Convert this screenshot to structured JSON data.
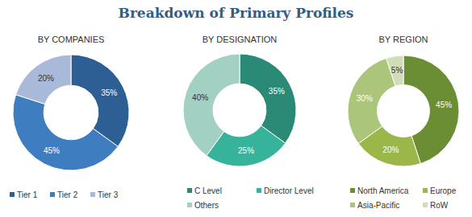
{
  "title": "Breakdown of Primary Profiles",
  "chart_data": [
    {
      "type": "pie",
      "title": "BY COMPANIES",
      "categories": [
        "Tier 1",
        "Tier 2",
        "Tier 3"
      ],
      "values": [
        35,
        45,
        20
      ],
      "value_labels": [
        "35%",
        "45%",
        "20%"
      ],
      "colors": [
        "#2d5e94",
        "#3f7dc1",
        "#a8b9d9"
      ],
      "data_labels": true
    },
    {
      "type": "pie",
      "title": "BY DESIGNATION",
      "categories": [
        "C Level",
        "Director Level",
        "Others"
      ],
      "values": [
        35,
        25,
        40
      ],
      "value_labels": [
        "35%",
        "25%",
        "40%"
      ],
      "colors": [
        "#2a8a75",
        "#37b39b",
        "#a2d0c3"
      ],
      "data_labels": true
    },
    {
      "type": "pie",
      "title": "BY REGION",
      "categories": [
        "North America",
        "Europe",
        "Asia-Pacific",
        "RoW"
      ],
      "values": [
        45,
        20,
        30,
        5
      ],
      "value_labels": [
        "45%",
        "20%",
        "30%",
        "5%"
      ],
      "colors": [
        "#6b8e34",
        "#9bb74a",
        "#abc67a",
        "#d0ddb6"
      ],
      "data_labels": true
    }
  ]
}
